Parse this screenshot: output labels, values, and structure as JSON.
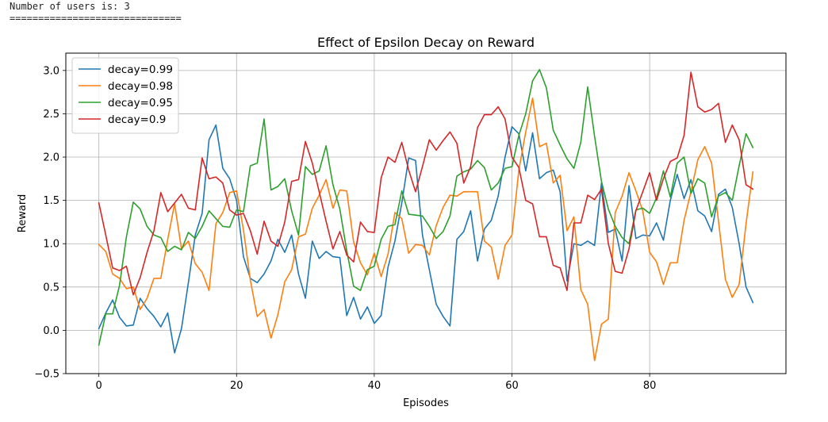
{
  "console": {
    "line1": "Number of users is: 3",
    "line2": "=============================="
  },
  "chart_data": {
    "type": "line",
    "title": "Effect of Epsilon Decay on Reward",
    "xlabel": "Episodes",
    "ylabel": "Reward",
    "xlim": [
      -4.8,
      99.8
    ],
    "ylim": [
      -0.5,
      3.2
    ],
    "xticks": [
      0,
      20,
      40,
      60,
      80
    ],
    "yticks": [
      -0.5,
      0.0,
      0.5,
      1.0,
      1.5,
      2.0,
      2.5,
      3.0
    ],
    "ytick_labels": [
      "−0.5",
      "0.0",
      "0.5",
      "1.0",
      "1.5",
      "2.0",
      "2.5",
      "3.0"
    ],
    "grid": true,
    "legend_position": "top-left",
    "series": [
      {
        "name": "decay=0.99",
        "color": "#1f77b4",
        "values": [
          0.02,
          0.2,
          0.35,
          0.15,
          0.05,
          0.06,
          0.37,
          0.25,
          0.16,
          0.04,
          0.2,
          -0.26,
          0.02,
          0.55,
          1.1,
          1.35,
          2.2,
          2.37,
          1.87,
          1.75,
          1.5,
          0.85,
          0.6,
          0.55,
          0.65,
          0.8,
          1.05,
          0.9,
          1.1,
          0.65,
          0.37,
          1.03,
          0.83,
          0.91,
          0.85,
          0.84,
          0.17,
          0.38,
          0.13,
          0.27,
          0.08,
          0.17,
          0.73,
          1.03,
          1.47,
          1.99,
          1.96,
          1.1,
          0.7,
          0.3,
          0.16,
          0.05,
          1.05,
          1.14,
          1.38,
          0.8,
          1.17,
          1.27,
          1.55,
          2.0,
          2.35,
          2.27,
          1.84,
          2.28,
          1.75,
          1.82,
          1.85,
          1.6,
          0.57,
          1.0,
          0.98,
          1.03,
          0.98,
          1.7,
          1.13,
          1.17,
          0.8,
          1.67,
          1.06,
          1.1,
          1.09,
          1.24,
          1.04,
          1.5,
          1.8,
          1.52,
          1.74,
          1.38,
          1.32,
          1.14,
          1.57,
          1.63,
          1.42,
          1.0,
          0.5,
          0.32
        ]
      },
      {
        "name": "decay=0.98",
        "color": "#ff7f0e",
        "values": [
          0.99,
          0.91,
          0.65,
          0.6,
          0.48,
          0.5,
          0.24,
          0.37,
          0.6,
          0.6,
          1.05,
          1.46,
          0.94,
          1.03,
          0.77,
          0.67,
          0.46,
          1.23,
          1.36,
          1.59,
          1.61,
          1.16,
          0.58,
          0.16,
          0.24,
          -0.09,
          0.18,
          0.56,
          0.7,
          1.08,
          1.11,
          1.41,
          1.56,
          1.74,
          1.41,
          1.62,
          1.61,
          1.02,
          0.78,
          0.64,
          0.89,
          0.62,
          0.88,
          1.36,
          1.29,
          0.89,
          0.99,
          0.98,
          0.87,
          1.21,
          1.42,
          1.56,
          1.55,
          1.6,
          1.6,
          1.6,
          1.03,
          0.96,
          0.59,
          0.98,
          1.1,
          1.85,
          2.29,
          2.68,
          2.12,
          2.16,
          1.7,
          1.79,
          1.15,
          1.31,
          0.47,
          0.3,
          -0.35,
          0.07,
          0.13,
          1.36,
          1.55,
          1.82,
          1.61,
          1.38,
          0.9,
          0.79,
          0.53,
          0.78,
          0.78,
          1.27,
          1.6,
          1.97,
          2.12,
          1.93,
          1.26,
          0.59,
          0.38,
          0.53,
          1.23,
          1.83
        ]
      },
      {
        "name": "decay=0.95",
        "color": "#2ca02c",
        "values": [
          -0.17,
          0.19,
          0.19,
          0.52,
          1.08,
          1.48,
          1.4,
          1.2,
          1.1,
          1.07,
          0.91,
          0.97,
          0.93,
          1.13,
          1.06,
          1.2,
          1.38,
          1.29,
          1.2,
          1.19,
          1.39,
          1.37,
          1.9,
          1.93,
          2.44,
          1.62,
          1.66,
          1.75,
          1.38,
          1.1,
          1.89,
          1.8,
          1.84,
          2.13,
          1.68,
          1.4,
          0.92,
          0.51,
          0.46,
          0.7,
          0.74,
          1.05,
          1.2,
          1.22,
          1.61,
          1.34,
          1.33,
          1.32,
          1.2,
          1.06,
          1.14,
          1.32,
          1.78,
          1.83,
          1.86,
          1.96,
          1.88,
          1.62,
          1.7,
          1.87,
          1.89,
          2.25,
          2.5,
          2.88,
          3.01,
          2.8,
          2.31,
          2.14,
          1.98,
          1.87,
          2.17,
          2.81,
          2.24,
          1.72,
          1.4,
          1.2,
          1.07,
          1.0,
          1.39,
          1.41,
          1.35,
          1.53,
          1.84,
          1.54,
          1.93,
          2.0,
          1.58,
          1.75,
          1.7,
          1.31,
          1.55,
          1.59,
          1.5,
          1.9,
          2.27,
          2.11
        ]
      },
      {
        "name": "decay=0.9",
        "color": "#d62728",
        "values": [
          1.47,
          1.1,
          0.72,
          0.69,
          0.74,
          0.41,
          0.61,
          0.9,
          1.15,
          1.59,
          1.37,
          1.47,
          1.57,
          1.41,
          1.39,
          1.99,
          1.75,
          1.77,
          1.7,
          1.39,
          1.33,
          1.35,
          1.15,
          0.88,
          1.26,
          1.03,
          0.97,
          1.25,
          1.72,
          1.74,
          2.18,
          1.93,
          1.6,
          1.26,
          0.94,
          1.14,
          0.87,
          0.79,
          1.25,
          1.14,
          1.13,
          1.76,
          2.0,
          1.94,
          2.17,
          1.85,
          1.6,
          1.89,
          2.2,
          2.08,
          2.19,
          2.29,
          2.16,
          1.7,
          1.89,
          2.34,
          2.49,
          2.49,
          2.58,
          2.44,
          2.0,
          1.88,
          1.5,
          1.46,
          1.08,
          1.08,
          0.75,
          0.72,
          0.46,
          1.24,
          1.24,
          1.56,
          1.51,
          1.63,
          1.0,
          0.68,
          0.66,
          0.94,
          1.38,
          1.6,
          1.82,
          1.5,
          1.75,
          1.95,
          1.99,
          2.25,
          2.98,
          2.58,
          2.52,
          2.55,
          2.62,
          2.17,
          2.37,
          2.2,
          1.68,
          1.63
        ]
      }
    ]
  }
}
